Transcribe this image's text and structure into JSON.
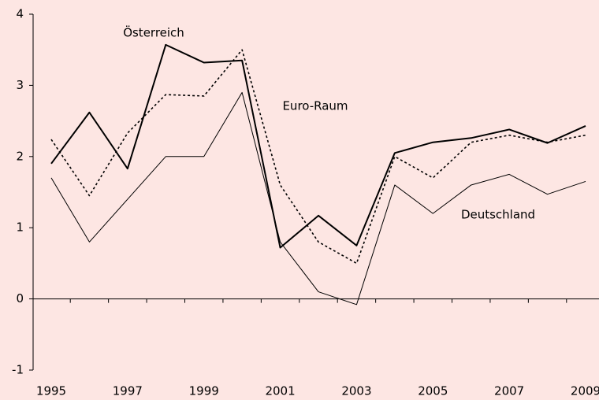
{
  "chart_data": {
    "type": "line",
    "x": [
      1995,
      1996,
      1997,
      1998,
      1999,
      2000,
      2001,
      2002,
      2003,
      2004,
      2005,
      2006,
      2007,
      2008,
      2009
    ],
    "series": [
      {
        "name": "Österreich",
        "color": "#000000",
        "style": "thick",
        "values": [
          1.9,
          2.62,
          1.83,
          3.57,
          3.32,
          3.35,
          0.72,
          1.17,
          0.75,
          2.05,
          2.2,
          2.26,
          2.38,
          2.19,
          2.43
        ]
      },
      {
        "name": "Euro-Raum",
        "color": "#000000",
        "style": "dotted",
        "values": [
          2.24,
          1.45,
          2.33,
          2.87,
          2.85,
          3.5,
          1.6,
          0.8,
          0.5,
          2.0,
          1.7,
          2.2,
          2.3,
          2.2,
          2.3
        ]
      },
      {
        "name": "Deutschland",
        "color": "#000000",
        "style": "thin",
        "values": [
          1.7,
          0.8,
          1.4,
          2.0,
          2.0,
          2.9,
          0.8,
          0.1,
          -0.08,
          1.6,
          1.2,
          1.6,
          1.75,
          1.47,
          1.65
        ]
      }
    ],
    "xlim": [
      1995,
      2009
    ],
    "xticks": [
      1995,
      1997,
      1999,
      2001,
      2003,
      2005,
      2007,
      2009
    ],
    "ylim": [
      -1,
      4
    ],
    "yticks": [
      -1,
      0,
      1,
      2,
      3,
      4
    ]
  }
}
